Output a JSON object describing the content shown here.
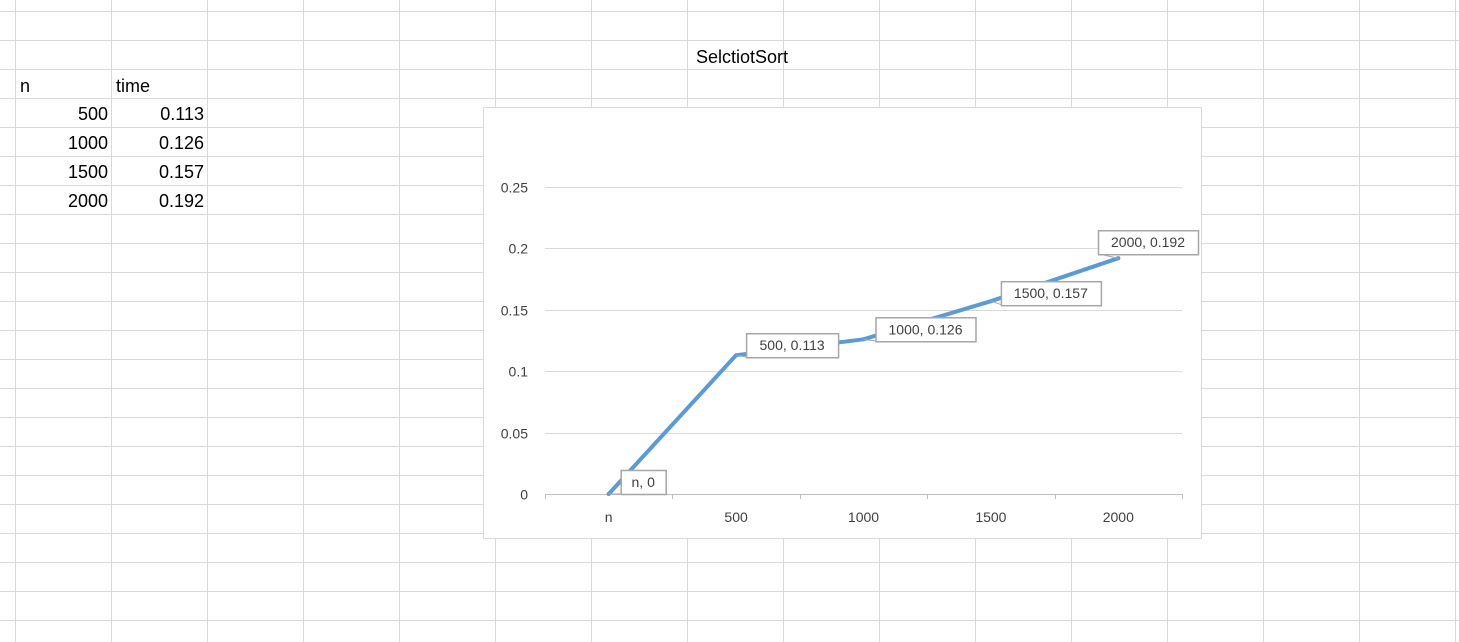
{
  "spreadsheet": {
    "header_row": {
      "a": "n",
      "b": "time"
    },
    "rows": [
      {
        "a": "500",
        "b": "0.113"
      },
      {
        "a": "1000",
        "b": "0.126"
      },
      {
        "a": "1500",
        "b": "0.157"
      },
      {
        "a": "2000",
        "b": "0.192"
      }
    ],
    "title_cell": "SelctiotSort"
  },
  "chart_data": {
    "type": "line",
    "title": "",
    "xlabel": "",
    "ylabel": "",
    "categories": [
      "n",
      "500",
      "1000",
      "1500",
      "2000"
    ],
    "series": [
      {
        "values": [
          0,
          0.113,
          0.126,
          0.157,
          0.192
        ],
        "color": "#5b9bd5"
      }
    ],
    "data_labels": [
      "n, 0",
      "500, 0.113",
      "1000, 0.126",
      "1500, 0.157",
      "2000, 0.192"
    ],
    "y_ticks": [
      "0",
      "0.05",
      "0.1",
      "0.15",
      "0.2",
      "0.25"
    ],
    "ylim": [
      0,
      0.25
    ],
    "grid": true,
    "legend": "none"
  },
  "colors": {
    "gridline": "#d9d9d9",
    "chart_gridline": "#d9d9d9",
    "series": "#5b9bd5",
    "label_border": "#a6a6a6"
  }
}
